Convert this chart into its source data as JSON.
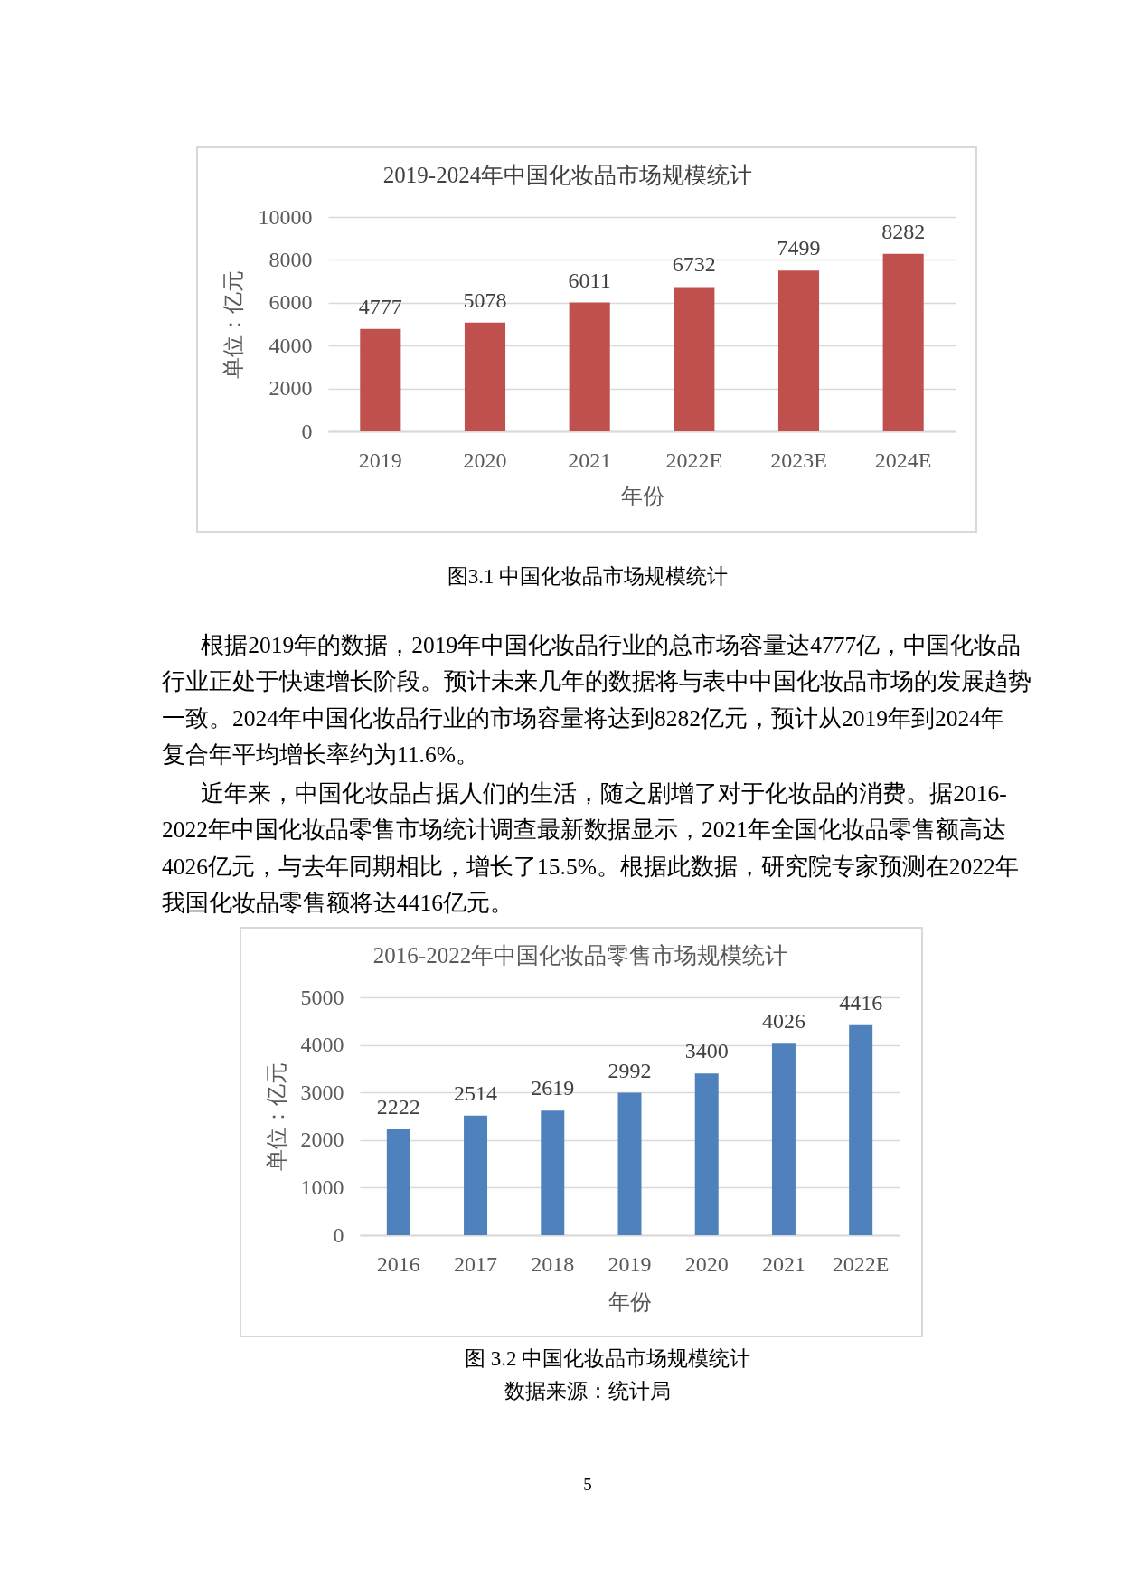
{
  "chart_data": [
    {
      "type": "bar",
      "title": "2019-2024年中国化妆品市场规模统计",
      "xlabel": "年份",
      "ylabel": "单位：亿元",
      "categories": [
        "2019",
        "2020",
        "2021",
        "2022E",
        "2023E",
        "2024E"
      ],
      "values": [
        4777,
        5078,
        6011,
        6732,
        7499,
        8282
      ],
      "color": "#c0504d",
      "ylim": [
        0,
        10000
      ],
      "yticks": [
        0,
        2000,
        4000,
        6000,
        8000,
        10000
      ],
      "grid": "y",
      "data_labels": true,
      "annotations": [
        "图3.1 中国化妆品市场规模统计",
        "根据2019年的数据，2019年中国化妆品行业的总市场容量达4777亿，中国化妆品行业正处于快速增长阶段。预计未来几年的数据将与表中中国化妆品市场的发展趋势一致。2024年中国化妆品行业的市场容量将达到8282亿元，预计从2019年到2024年复合年平均增长率约为11.6%。"
      ]
    },
    {
      "type": "bar",
      "title": "2016-2022年中国化妆品零售市场规模统计",
      "xlabel": "年份",
      "ylabel": "单位：亿元",
      "categories": [
        "2016",
        "2017",
        "2018",
        "2019",
        "2020",
        "2021",
        "2022E"
      ],
      "values": [
        2222,
        2514,
        2619,
        2992,
        3400,
        4026,
        4416
      ],
      "color": "#4f81bd",
      "ylim": [
        0,
        5000
      ],
      "yticks": [
        0,
        1000,
        2000,
        3000,
        4000,
        5000
      ],
      "grid": "y",
      "data_labels": true,
      "annotations": [
        "近年来，中国化妆品占据人们的生活，随之剧增了对于化妆品的消费。据2016-2022年中国化妆品零售市场统计调查最新数据显示，2021年全国化妆品零售额高达4026亿元，与去年同期相比，增长了15.5%。根据此数据，研究院专家预测在2022年我国化妆品零售额将达4416亿元。",
        "图 3.2 中国化妆品市场规模统计",
        "数据来源：统计局",
        "5"
      ]
    }
  ]
}
